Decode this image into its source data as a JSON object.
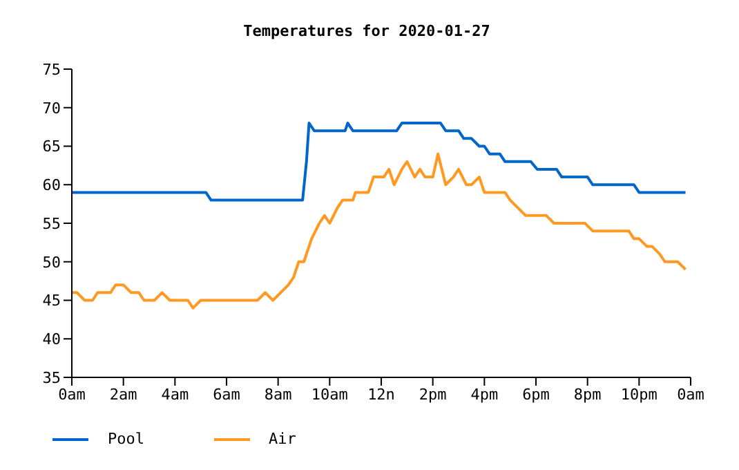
{
  "chart_data": {
    "type": "line",
    "title": "Temperatures for 2020-01-27",
    "legend": "bottom left",
    "grid": false,
    "marker": "none",
    "xlim": [
      "2020-01-27T00:00",
      "2020-01-28T00:00"
    ],
    "xticks": [
      {
        "value": "2020-01-27T00:00",
        "label": "0am"
      },
      {
        "value": "2020-01-27T02:00",
        "label": "2am"
      },
      {
        "value": "2020-01-27T04:00",
        "label": "4am"
      },
      {
        "value": "2020-01-27T06:00",
        "label": "6am"
      },
      {
        "value": "2020-01-27T08:00",
        "label": "8am"
      },
      {
        "value": "2020-01-27T10:00",
        "label": "10am"
      },
      {
        "value": "2020-01-27T12:00",
        "label": "12n"
      },
      {
        "value": "2020-01-27T14:00",
        "label": "2pm"
      },
      {
        "value": "2020-01-27T16:00",
        "label": "4pm"
      },
      {
        "value": "2020-01-27T18:00",
        "label": "6pm"
      },
      {
        "value": "2020-01-27T20:00",
        "label": "8pm"
      },
      {
        "value": "2020-01-27T22:00",
        "label": "10pm"
      },
      {
        "value": "2020-01-28T00:00",
        "label": "0am"
      }
    ],
    "ylim": [
      35,
      75
    ],
    "yticks": [
      35,
      40,
      45,
      50,
      55,
      60,
      65,
      70,
      75
    ],
    "series": [
      {
        "name": "Pool",
        "color": "#0066cc",
        "x": [
          "2020-01-27T00:00",
          "2020-01-27T05:12",
          "2020-01-27T05:24",
          "2020-01-27T08:57",
          "2020-01-27T09:06",
          "2020-01-27T09:12",
          "2020-01-27T09:24",
          "2020-01-27T10:36",
          "2020-01-27T10:42",
          "2020-01-27T10:54",
          "2020-01-27T12:00",
          "2020-01-27T12:36",
          "2020-01-27T12:48",
          "2020-01-27T14:18",
          "2020-01-27T14:30",
          "2020-01-27T15:00",
          "2020-01-27T15:12",
          "2020-01-27T15:30",
          "2020-01-27T15:48",
          "2020-01-27T16:00",
          "2020-01-27T16:12",
          "2020-01-27T16:36",
          "2020-01-27T16:48",
          "2020-01-27T17:48",
          "2020-01-27T18:03",
          "2020-01-27T18:48",
          "2020-01-27T19:00",
          "2020-01-27T20:00",
          "2020-01-27T20:12",
          "2020-01-27T21:48",
          "2020-01-27T22:00",
          "2020-01-27T23:48"
        ],
        "values": [
          59,
          59,
          58,
          58,
          63,
          68,
          67,
          67,
          68,
          67,
          67,
          67,
          68,
          68,
          67,
          67,
          66,
          66,
          65,
          65,
          64,
          64,
          63,
          63,
          62,
          62,
          61,
          61,
          60,
          60,
          59,
          59
        ]
      },
      {
        "name": "Air",
        "color": "#ff9922",
        "x": [
          "2020-01-27T00:00",
          "2020-01-27T00:12",
          "2020-01-27T00:30",
          "2020-01-27T00:48",
          "2020-01-27T01:00",
          "2020-01-27T01:30",
          "2020-01-27T01:42",
          "2020-01-27T02:00",
          "2020-01-27T02:18",
          "2020-01-27T02:36",
          "2020-01-27T02:48",
          "2020-01-27T03:12",
          "2020-01-27T03:30",
          "2020-01-27T03:48",
          "2020-01-27T04:30",
          "2020-01-27T04:42",
          "2020-01-27T05:00",
          "2020-01-27T07:12",
          "2020-01-27T07:30",
          "2020-01-27T07:48",
          "2020-01-27T08:06",
          "2020-01-27T08:24",
          "2020-01-27T08:36",
          "2020-01-27T08:48",
          "2020-01-27T09:00",
          "2020-01-27T09:18",
          "2020-01-27T09:36",
          "2020-01-27T09:48",
          "2020-01-27T10:00",
          "2020-01-27T10:18",
          "2020-01-27T10:30",
          "2020-01-27T10:54",
          "2020-01-27T11:00",
          "2020-01-27T11:30",
          "2020-01-27T11:42",
          "2020-01-27T12:06",
          "2020-01-27T12:18",
          "2020-01-27T12:30",
          "2020-01-27T12:48",
          "2020-01-27T13:00",
          "2020-01-27T13:18",
          "2020-01-27T13:30",
          "2020-01-27T13:42",
          "2020-01-27T14:00",
          "2020-01-27T14:12",
          "2020-01-27T14:30",
          "2020-01-27T14:48",
          "2020-01-27T15:00",
          "2020-01-27T15:18",
          "2020-01-27T15:30",
          "2020-01-27T15:48",
          "2020-01-27T16:00",
          "2020-01-27T16:48",
          "2020-01-27T17:00",
          "2020-01-27T17:18",
          "2020-01-27T17:36",
          "2020-01-27T18:24",
          "2020-01-27T18:42",
          "2020-01-27T19:54",
          "2020-01-27T20:12",
          "2020-01-27T21:36",
          "2020-01-27T21:48",
          "2020-01-27T22:00",
          "2020-01-27T22:18",
          "2020-01-27T22:30",
          "2020-01-27T22:48",
          "2020-01-27T23:00",
          "2020-01-27T23:30",
          "2020-01-27T23:48"
        ],
        "values": [
          46,
          46,
          45,
          45,
          46,
          46,
          47,
          47,
          46,
          46,
          45,
          45,
          46,
          45,
          45,
          44,
          45,
          45,
          46,
          45,
          46,
          47,
          48,
          50,
          50,
          53,
          55,
          56,
          55,
          57,
          58,
          58,
          59,
          59,
          61,
          61,
          62,
          60,
          62,
          63,
          61,
          62,
          61,
          61,
          64,
          60,
          61,
          62,
          60,
          60,
          61,
          59,
          59,
          58,
          57,
          56,
          56,
          55,
          55,
          54,
          54,
          53,
          53,
          52,
          52,
          51,
          50,
          50,
          49
        ]
      }
    ]
  }
}
